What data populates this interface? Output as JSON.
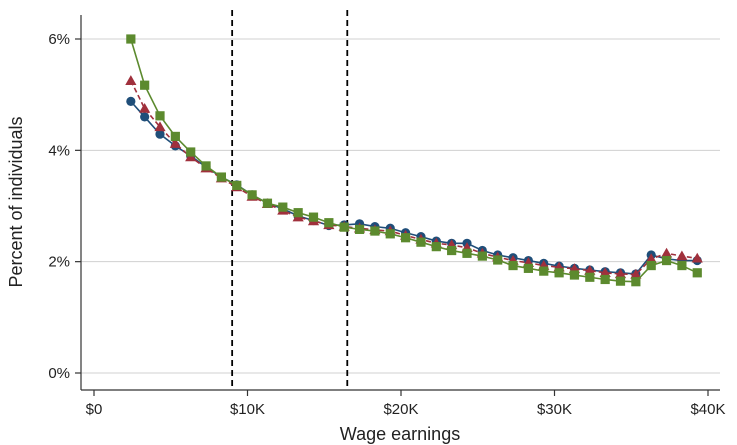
{
  "chart_data": {
    "type": "line",
    "xlabel": "Wage earnings",
    "ylabel": "Percent of individuals",
    "xlim": [
      0,
      40000
    ],
    "ylim": [
      0,
      6.5
    ],
    "x_ticks": [
      {
        "value": 0,
        "label": "$0"
      },
      {
        "value": 10000,
        "label": "$10K"
      },
      {
        "value": 20000,
        "label": "$20K"
      },
      {
        "value": 30000,
        "label": "$30K"
      },
      {
        "value": 40000,
        "label": "$40K"
      }
    ],
    "y_ticks": [
      {
        "value": 0,
        "label": "0%"
      },
      {
        "value": 2,
        "label": "2%"
      },
      {
        "value": 4,
        "label": "4%"
      },
      {
        "value": 6,
        "label": "6%"
      }
    ],
    "grid": "horizontal",
    "reference_lines_x": [
      9000,
      16500
    ],
    "x": [
      2400,
      3300,
      4300,
      5300,
      6300,
      7300,
      8300,
      9300,
      10300,
      11300,
      12300,
      13300,
      14300,
      15300,
      16300,
      17300,
      18300,
      19300,
      20300,
      21300,
      22300,
      23300,
      24300,
      25300,
      26300,
      27300,
      28300,
      29300,
      30300,
      31300,
      32300,
      33300,
      34300,
      35300,
      36300,
      37300,
      38300,
      39300
    ],
    "series": [
      {
        "color": "#1f4e79",
        "marker": "circle",
        "values": [
          4.88,
          4.6,
          4.29,
          4.08,
          3.9,
          3.7,
          3.52,
          3.38,
          3.2,
          3.05,
          2.95,
          2.82,
          2.74,
          2.65,
          2.66,
          2.68,
          2.63,
          2.6,
          2.52,
          2.45,
          2.37,
          2.33,
          2.33,
          2.2,
          2.12,
          2.07,
          2.02,
          1.97,
          1.92,
          1.88,
          1.85,
          1.82,
          1.8,
          1.78,
          2.12,
          2.05,
          2.02,
          2.02
        ]
      },
      {
        "color": "#a0303c",
        "marker": "triangle",
        "line_style": "dashed",
        "values": [
          5.25,
          4.75,
          4.42,
          4.12,
          3.88,
          3.68,
          3.5,
          3.34,
          3.17,
          3.04,
          2.92,
          2.8,
          2.73,
          2.66,
          2.63,
          2.6,
          2.57,
          2.55,
          2.47,
          2.4,
          2.33,
          2.3,
          2.25,
          2.15,
          2.08,
          2.02,
          1.98,
          1.93,
          1.9,
          1.87,
          1.84,
          1.8,
          1.78,
          1.77,
          2.05,
          2.15,
          2.1,
          2.06
        ]
      },
      {
        "color": "#5c8a2e",
        "marker": "square",
        "values": [
          6.0,
          5.17,
          4.62,
          4.25,
          3.97,
          3.72,
          3.52,
          3.37,
          3.2,
          3.05,
          2.98,
          2.88,
          2.8,
          2.7,
          2.62,
          2.58,
          2.55,
          2.5,
          2.43,
          2.35,
          2.27,
          2.2,
          2.15,
          2.1,
          2.03,
          1.93,
          1.88,
          1.83,
          1.8,
          1.76,
          1.72,
          1.68,
          1.65,
          1.64,
          1.93,
          2.02,
          1.93,
          1.8
        ]
      }
    ]
  }
}
